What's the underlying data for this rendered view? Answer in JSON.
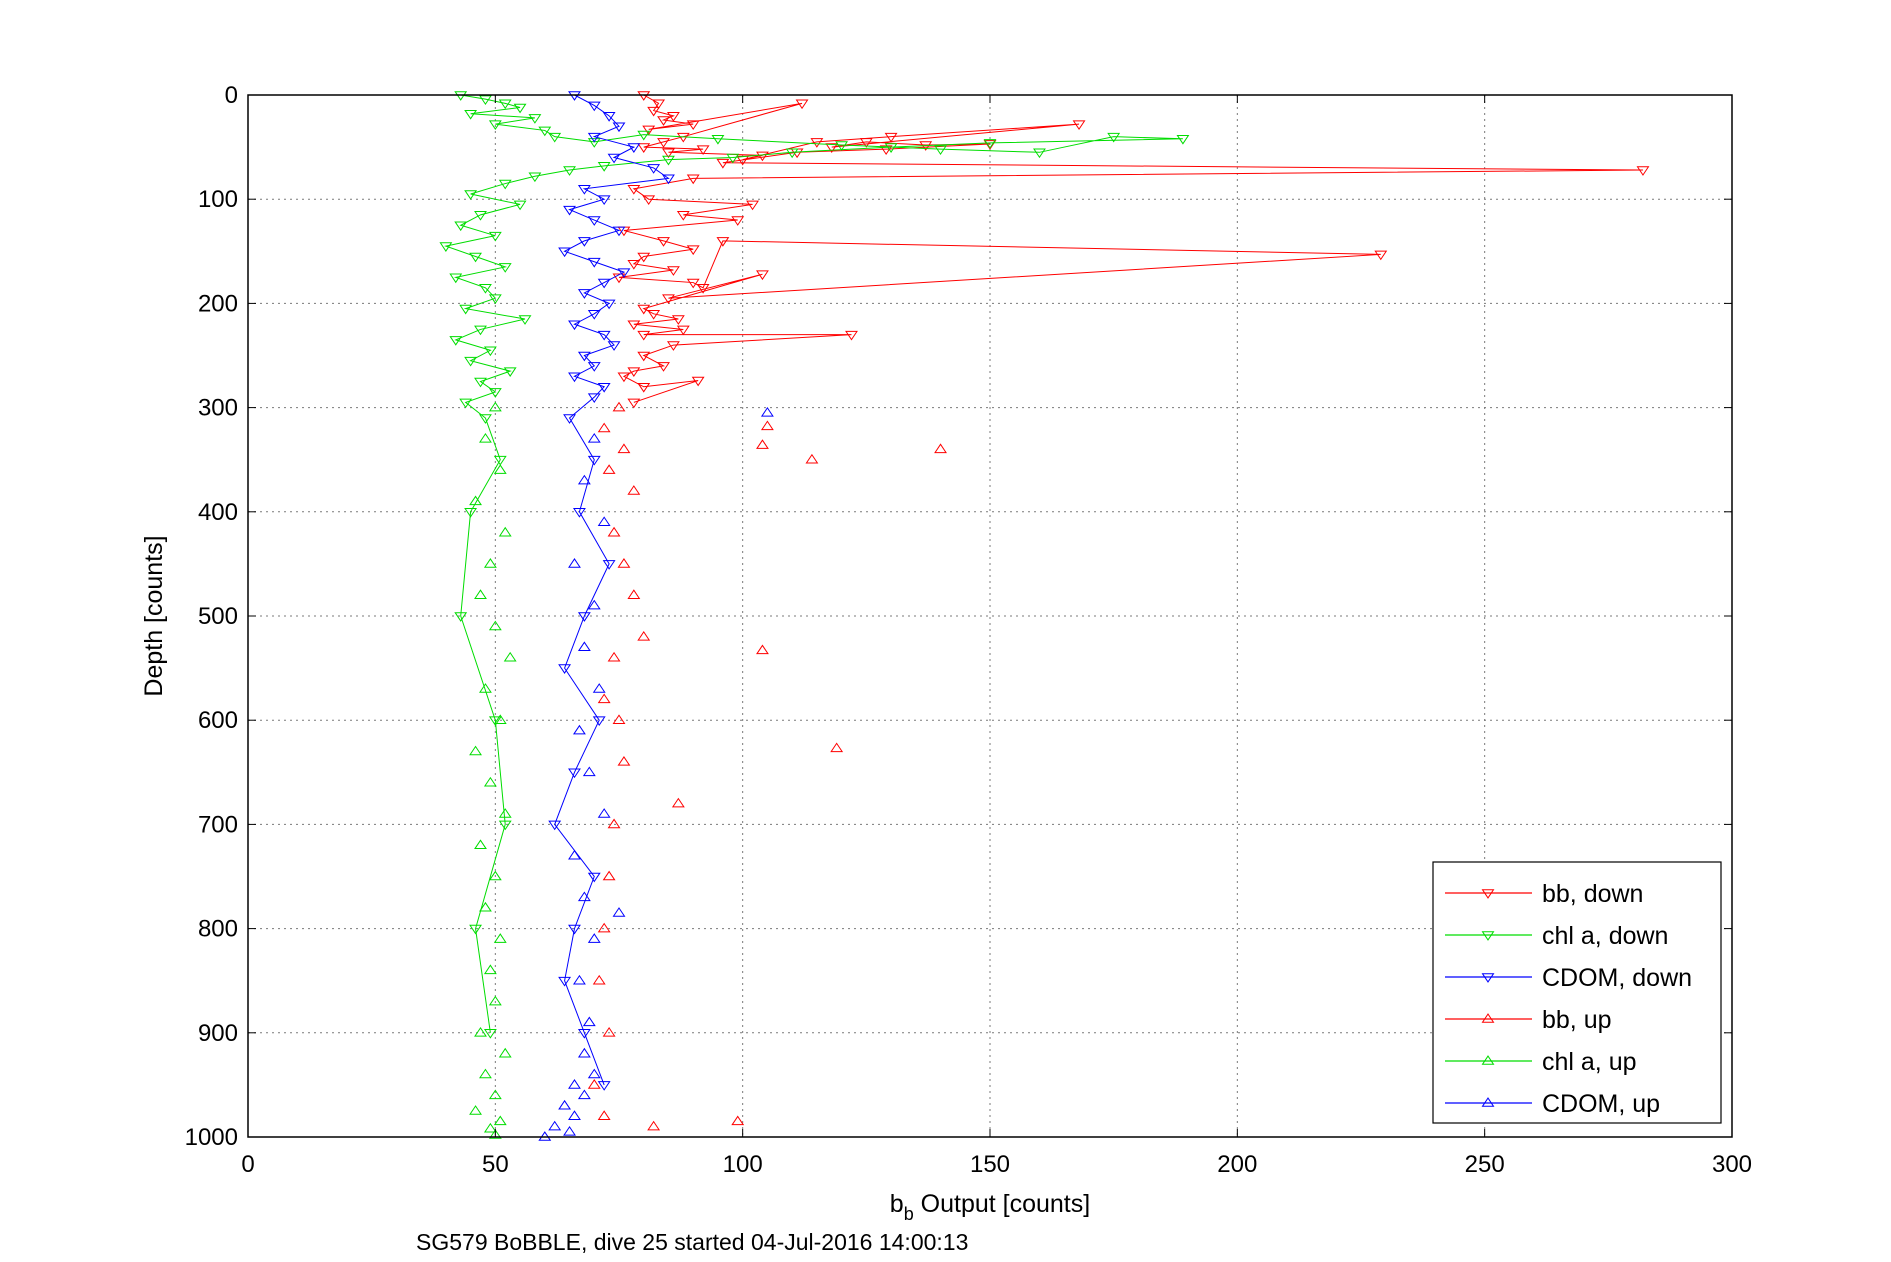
{
  "chart_data": {
    "type": "scatter",
    "xlabel_main": "b",
    "xlabel_sub": "b",
    "xlabel_rest": " Output [counts]",
    "ylabel": "Depth [counts]",
    "caption": "SG579 BoBBLE, dive 25 started 04-Jul-2016 14:00:13",
    "xlim": [
      0,
      300
    ],
    "ylim": [
      0,
      1000
    ],
    "y_reversed": true,
    "grid": true,
    "legend_position": "bottom-right",
    "x_ticks": [
      "0",
      "50",
      "100",
      "150",
      "200",
      "250",
      "300"
    ],
    "y_ticks": [
      "0",
      "100",
      "200",
      "300",
      "400",
      "500",
      "600",
      "700",
      "800",
      "900",
      "1000"
    ],
    "series": [
      {
        "name": "bb, down",
        "color": "#ff0000",
        "marker": "triangle-down",
        "x": [
          80,
          83,
          82,
          86,
          84,
          90,
          81,
          112,
          88,
          84,
          80,
          92,
          85,
          104,
          100,
          115,
          130,
          168,
          118,
          125,
          137,
          150,
          129,
          111,
          96,
          282,
          90,
          78,
          81,
          102,
          88,
          99,
          76,
          84,
          90,
          80,
          78,
          86,
          75,
          90,
          92,
          96,
          229,
          85,
          104,
          80,
          82,
          87,
          78,
          88,
          80,
          122,
          86,
          80,
          84,
          78,
          76,
          80,
          91,
          78
        ],
        "y": [
          0,
          8,
          15,
          20,
          24,
          28,
          33,
          8,
          40,
          45,
          50,
          52,
          55,
          58,
          62,
          45,
          40,
          28,
          50,
          45,
          48,
          47,
          52,
          55,
          65,
          72,
          80,
          90,
          100,
          105,
          115,
          120,
          130,
          140,
          148,
          155,
          162,
          168,
          175,
          180,
          185,
          140,
          153,
          195,
          172,
          205,
          210,
          215,
          220,
          225,
          230,
          230,
          240,
          250,
          260,
          265,
          270,
          280,
          274,
          295
        ]
      },
      {
        "name": "chl a, down",
        "color": "#00dd00",
        "marker": "triangle-down",
        "x": [
          43,
          48,
          52,
          55,
          45,
          58,
          50,
          60,
          62,
          70,
          80,
          95,
          120,
          140,
          160,
          175,
          189,
          150,
          130,
          110,
          98,
          85,
          72,
          65,
          58,
          52,
          45,
          55,
          47,
          43,
          50,
          40,
          46,
          52,
          42,
          48,
          50,
          44,
          56,
          47,
          42,
          49,
          45,
          53,
          47,
          50,
          44,
          48,
          51,
          45,
          43,
          50,
          52,
          46,
          49
        ],
        "y": [
          0,
          4,
          8,
          12,
          18,
          22,
          28,
          34,
          40,
          45,
          38,
          42,
          48,
          52,
          55,
          40,
          42,
          46,
          50,
          55,
          60,
          62,
          68,
          72,
          78,
          85,
          95,
          105,
          115,
          125,
          135,
          145,
          155,
          165,
          175,
          185,
          195,
          205,
          215,
          225,
          235,
          245,
          255,
          265,
          275,
          285,
          295,
          310,
          350,
          400,
          500,
          600,
          700,
          800,
          900
        ]
      },
      {
        "name": "CDOM, down",
        "color": "#0000ff",
        "marker": "triangle-down",
        "x": [
          66,
          70,
          73,
          75,
          70,
          78,
          74,
          82,
          85,
          68,
          72,
          65,
          70,
          75,
          68,
          64,
          70,
          76,
          72,
          68,
          73,
          70,
          66,
          72,
          74,
          68,
          70,
          66,
          72,
          70,
          65,
          70,
          67,
          73,
          68,
          64,
          71,
          66,
          62,
          70,
          66,
          64,
          68,
          72
        ],
        "y": [
          0,
          10,
          20,
          30,
          40,
          50,
          60,
          70,
          80,
          90,
          100,
          110,
          120,
          130,
          140,
          150,
          160,
          170,
          180,
          190,
          200,
          210,
          220,
          230,
          240,
          250,
          260,
          270,
          280,
          290,
          310,
          350,
          400,
          450,
          500,
          550,
          600,
          650,
          700,
          750,
          800,
          850,
          900,
          950
        ]
      },
      {
        "name": "bb, up",
        "color": "#ff0000",
        "marker": "triangle-up",
        "x": [
          75,
          72,
          76,
          73,
          78,
          74,
          104,
          105,
          114,
          140,
          76,
          78,
          80,
          74,
          72,
          104,
          75,
          119,
          76,
          87,
          74,
          73,
          72,
          71,
          73,
          70,
          72,
          99,
          82
        ],
        "y": [
          300,
          320,
          340,
          360,
          380,
          420,
          336,
          318,
          350,
          340,
          450,
          480,
          520,
          540,
          580,
          533,
          600,
          627,
          640,
          680,
          700,
          750,
          800,
          850,
          900,
          950,
          980,
          985,
          990
        ]
      },
      {
        "name": "chl a, up",
        "color": "#00dd00",
        "marker": "triangle-up",
        "x": [
          50,
          48,
          51,
          46,
          52,
          49,
          47,
          50,
          53,
          48,
          51,
          46,
          49,
          52,
          47,
          50,
          48,
          51,
          49,
          50,
          47,
          52,
          48,
          50,
          46,
          51,
          49,
          50
        ],
        "y": [
          300,
          330,
          360,
          390,
          420,
          450,
          480,
          510,
          540,
          570,
          600,
          630,
          660,
          690,
          720,
          750,
          780,
          810,
          840,
          870,
          900,
          920,
          940,
          960,
          975,
          985,
          992,
          998
        ]
      },
      {
        "name": "CDOM, up",
        "color": "#0000ff",
        "marker": "triangle-up",
        "x": [
          105,
          70,
          68,
          72,
          66,
          70,
          68,
          71,
          67,
          69,
          72,
          66,
          68,
          70,
          67,
          69,
          75,
          68,
          70,
          66,
          68,
          64,
          66,
          62,
          65,
          60
        ],
        "y": [
          305,
          330,
          370,
          410,
          450,
          490,
          530,
          570,
          610,
          650,
          690,
          730,
          770,
          810,
          850,
          890,
          785,
          920,
          940,
          950,
          960,
          970,
          980,
          990,
          995,
          1000
        ]
      }
    ]
  }
}
